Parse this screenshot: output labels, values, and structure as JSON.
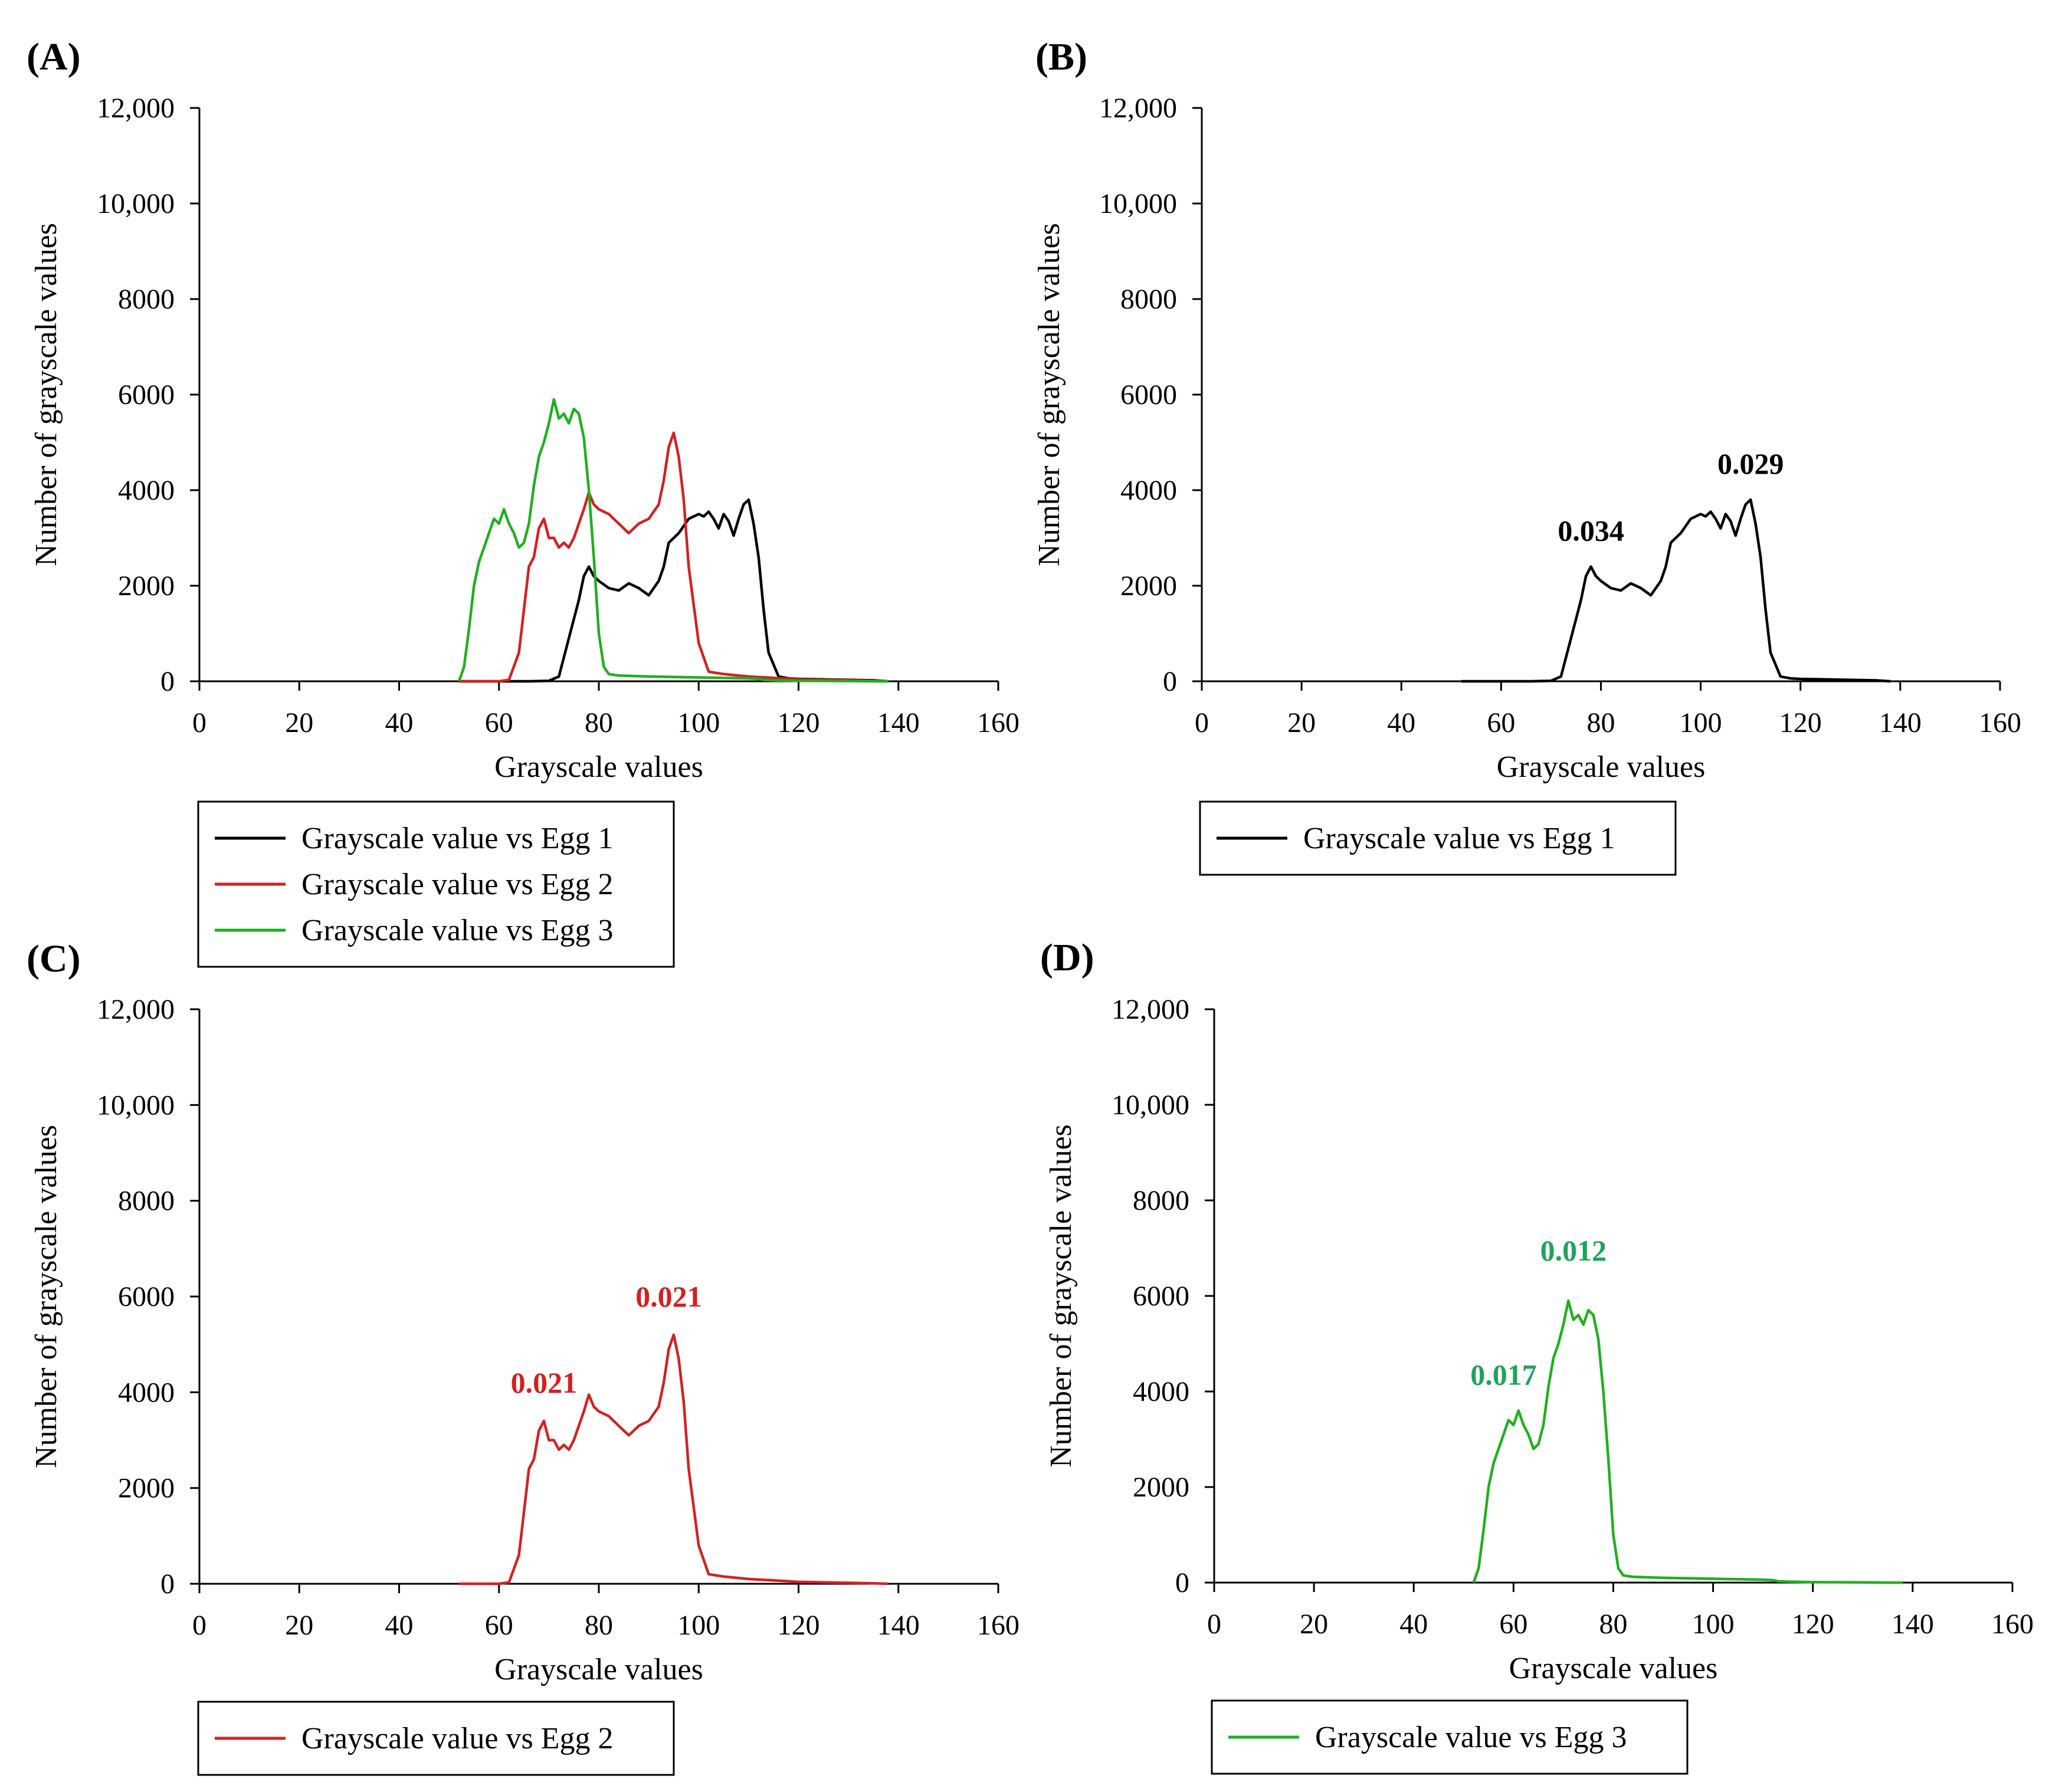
{
  "chart_data": [
    {
      "panel_label": "(A)",
      "type": "line",
      "xlabel": "Grayscale values",
      "ylabel": "Number of grayscale values",
      "xlim": [
        0,
        160
      ],
      "ylim": [
        0,
        12000
      ],
      "x_ticks": [
        0,
        20,
        40,
        60,
        80,
        100,
        120,
        140,
        160
      ],
      "y_ticks": [
        0,
        2000,
        4000,
        6000,
        8000,
        10000,
        12000
      ],
      "y_tick_labels": [
        "0",
        "2000",
        "4000",
        "6000",
        "8000",
        "10,000",
        "12,000"
      ],
      "legend": [
        {
          "label": "Grayscale value vs Egg 1",
          "color": "#000000"
        },
        {
          "label": "Grayscale value vs Egg 2",
          "color": "#d42020"
        },
        {
          "label": "Grayscale value vs Egg 3",
          "color": "#1fb01f"
        }
      ],
      "annotations": [],
      "series": [
        {
          "name": "Egg 1",
          "color": "#000000",
          "x": [
            52,
            60,
            66,
            70,
            72,
            74,
            76,
            77,
            78,
            79,
            80,
            82,
            84,
            86,
            88,
            90,
            92,
            93,
            94,
            96,
            98,
            100,
            101,
            102,
            103,
            104,
            105,
            106,
            107,
            108,
            109,
            110,
            111,
            112,
            113,
            114,
            116,
            118,
            120,
            125,
            130,
            135,
            138
          ],
          "y": [
            0,
            0,
            0,
            10,
            100,
            900,
            1700,
            2200,
            2400,
            2200,
            2100,
            1950,
            1900,
            2050,
            1950,
            1800,
            2100,
            2400,
            2900,
            3100,
            3400,
            3500,
            3450,
            3550,
            3400,
            3200,
            3500,
            3350,
            3050,
            3400,
            3700,
            3800,
            3300,
            2600,
            1500,
            600,
            100,
            60,
            50,
            40,
            30,
            20,
            0
          ]
        },
        {
          "name": "Egg 2",
          "color": "#d42020",
          "x": [
            52,
            58,
            60,
            62,
            64,
            65,
            66,
            67,
            68,
            69,
            70,
            71,
            72,
            73,
            74,
            75,
            76,
            77,
            78,
            79,
            80,
            82,
            84,
            86,
            88,
            90,
            92,
            93,
            94,
            95,
            96,
            97,
            98,
            100,
            102,
            105,
            110,
            115,
            120,
            125,
            130,
            135,
            138
          ],
          "y": [
            0,
            0,
            0,
            30,
            600,
            1500,
            2400,
            2600,
            3200,
            3400,
            3000,
            3000,
            2800,
            2900,
            2800,
            3000,
            3300,
            3600,
            3950,
            3700,
            3600,
            3500,
            3300,
            3100,
            3300,
            3400,
            3700,
            4200,
            4900,
            5200,
            4700,
            3800,
            2400,
            800,
            200,
            150,
            100,
            70,
            40,
            30,
            20,
            10,
            0
          ]
        },
        {
          "name": "Egg 3",
          "color": "#1fb01f",
          "x": [
            52,
            53,
            54,
            55,
            56,
            57,
            58,
            59,
            60,
            61,
            62,
            63,
            64,
            65,
            66,
            67,
            68,
            69,
            70,
            71,
            72,
            73,
            74,
            75,
            76,
            77,
            78,
            79,
            80,
            81,
            82,
            84,
            90,
            100,
            105,
            110,
            112,
            113,
            115,
            120,
            130,
            135,
            138
          ],
          "y": [
            0,
            300,
            1100,
            2000,
            2500,
            2800,
            3100,
            3400,
            3300,
            3600,
            3300,
            3100,
            2800,
            2900,
            3300,
            4100,
            4700,
            5000,
            5400,
            5900,
            5500,
            5600,
            5400,
            5700,
            5600,
            5100,
            4000,
            2600,
            1000,
            300,
            150,
            120,
            100,
            80,
            70,
            60,
            50,
            30,
            20,
            10,
            5,
            0,
            0
          ]
        }
      ]
    },
    {
      "panel_label": "(B)",
      "type": "line",
      "xlabel": "Grayscale values",
      "ylabel": "Number of grayscale values",
      "xlim": [
        0,
        160
      ],
      "ylim": [
        0,
        12000
      ],
      "x_ticks": [
        0,
        20,
        40,
        60,
        80,
        100,
        120,
        140,
        160
      ],
      "y_ticks": [
        0,
        2000,
        4000,
        6000,
        8000,
        10000,
        12000
      ],
      "y_tick_labels": [
        "0",
        "2000",
        "4000",
        "6000",
        "8000",
        "10,000",
        "12,000"
      ],
      "legend": [
        {
          "label": "Grayscale value vs Egg 1",
          "color": "#000000"
        }
      ],
      "annotations": [
        {
          "text": "0.034",
          "x": 78,
          "y": 2450,
          "color": "#000000"
        },
        {
          "text": "0.029",
          "x": 110,
          "y": 3850,
          "color": "#000000"
        }
      ],
      "series": [
        {
          "name": "Egg 1",
          "color": "#000000",
          "x": [
            52,
            60,
            66,
            70,
            72,
            74,
            76,
            77,
            78,
            79,
            80,
            82,
            84,
            86,
            88,
            90,
            92,
            93,
            94,
            96,
            98,
            100,
            101,
            102,
            103,
            104,
            105,
            106,
            107,
            108,
            109,
            110,
            111,
            112,
            113,
            114,
            116,
            118,
            120,
            125,
            130,
            135,
            138
          ],
          "y": [
            0,
            0,
            0,
            10,
            100,
            900,
            1700,
            2200,
            2400,
            2200,
            2100,
            1950,
            1900,
            2050,
            1950,
            1800,
            2100,
            2400,
            2900,
            3100,
            3400,
            3500,
            3450,
            3550,
            3400,
            3200,
            3500,
            3350,
            3050,
            3400,
            3700,
            3800,
            3300,
            2600,
            1500,
            600,
            100,
            60,
            50,
            40,
            30,
            20,
            0
          ]
        }
      ]
    },
    {
      "panel_label": "(C)",
      "type": "line",
      "xlabel": "Grayscale values",
      "ylabel": "Number of grayscale values",
      "xlim": [
        0,
        160
      ],
      "ylim": [
        0,
        12000
      ],
      "x_ticks": [
        0,
        20,
        40,
        60,
        80,
        100,
        120,
        140,
        160
      ],
      "y_ticks": [
        0,
        2000,
        4000,
        6000,
        8000,
        10000,
        12000
      ],
      "y_tick_labels": [
        "0",
        "2000",
        "4000",
        "6000",
        "8000",
        "10,000",
        "12,000"
      ],
      "legend": [
        {
          "label": "Grayscale value vs Egg 2",
          "color": "#d42020"
        }
      ],
      "annotations": [
        {
          "text": "0.021",
          "x": 69,
          "y": 3500,
          "color": "#d42020"
        },
        {
          "text": "0.021",
          "x": 94,
          "y": 5300,
          "color": "#d42020"
        }
      ],
      "series": [
        {
          "name": "Egg 2",
          "color": "#d42020",
          "x": [
            52,
            58,
            60,
            62,
            64,
            65,
            66,
            67,
            68,
            69,
            70,
            71,
            72,
            73,
            74,
            75,
            76,
            77,
            78,
            79,
            80,
            82,
            84,
            86,
            88,
            90,
            92,
            93,
            94,
            95,
            96,
            97,
            98,
            100,
            102,
            105,
            110,
            115,
            120,
            125,
            130,
            135,
            138
          ],
          "y": [
            0,
            0,
            0,
            30,
            600,
            1500,
            2400,
            2600,
            3200,
            3400,
            3000,
            3000,
            2800,
            2900,
            2800,
            3000,
            3300,
            3600,
            3950,
            3700,
            3600,
            3500,
            3300,
            3100,
            3300,
            3400,
            3700,
            4200,
            4900,
            5200,
            4700,
            3800,
            2400,
            800,
            200,
            150,
            100,
            70,
            40,
            30,
            20,
            10,
            0
          ]
        }
      ]
    },
    {
      "panel_label": "(D)",
      "type": "line",
      "xlabel": "Grayscale values",
      "ylabel": "Number of grayscale values",
      "xlim": [
        0,
        160
      ],
      "ylim": [
        0,
        12000
      ],
      "x_ticks": [
        0,
        20,
        40,
        60,
        80,
        100,
        120,
        140,
        160
      ],
      "y_ticks": [
        0,
        2000,
        4000,
        6000,
        8000,
        10000,
        12000
      ],
      "y_tick_labels": [
        "0",
        "2000",
        "4000",
        "6000",
        "8000",
        "10,000",
        "12,000"
      ],
      "legend": [
        {
          "label": "Grayscale value vs Egg 3",
          "color": "#1fb01f"
        }
      ],
      "annotations": [
        {
          "text": "0.017",
          "x": 58,
          "y": 3650,
          "color": "#1fa35a"
        },
        {
          "text": "0.012",
          "x": 72,
          "y": 6250,
          "color": "#1fa35a"
        }
      ],
      "series": [
        {
          "name": "Egg 3",
          "color": "#1fb01f",
          "x": [
            52,
            53,
            54,
            55,
            56,
            57,
            58,
            59,
            60,
            61,
            62,
            63,
            64,
            65,
            66,
            67,
            68,
            69,
            70,
            71,
            72,
            73,
            74,
            75,
            76,
            77,
            78,
            79,
            80,
            81,
            82,
            84,
            90,
            100,
            105,
            110,
            112,
            113,
            115,
            120,
            130,
            135,
            138
          ],
          "y": [
            0,
            300,
            1100,
            2000,
            2500,
            2800,
            3100,
            3400,
            3300,
            3600,
            3300,
            3100,
            2800,
            2900,
            3300,
            4100,
            4700,
            5000,
            5400,
            5900,
            5500,
            5600,
            5400,
            5700,
            5600,
            5100,
            4000,
            2600,
            1000,
            300,
            150,
            120,
            100,
            80,
            70,
            60,
            50,
            30,
            20,
            10,
            5,
            0,
            0
          ]
        }
      ]
    }
  ]
}
